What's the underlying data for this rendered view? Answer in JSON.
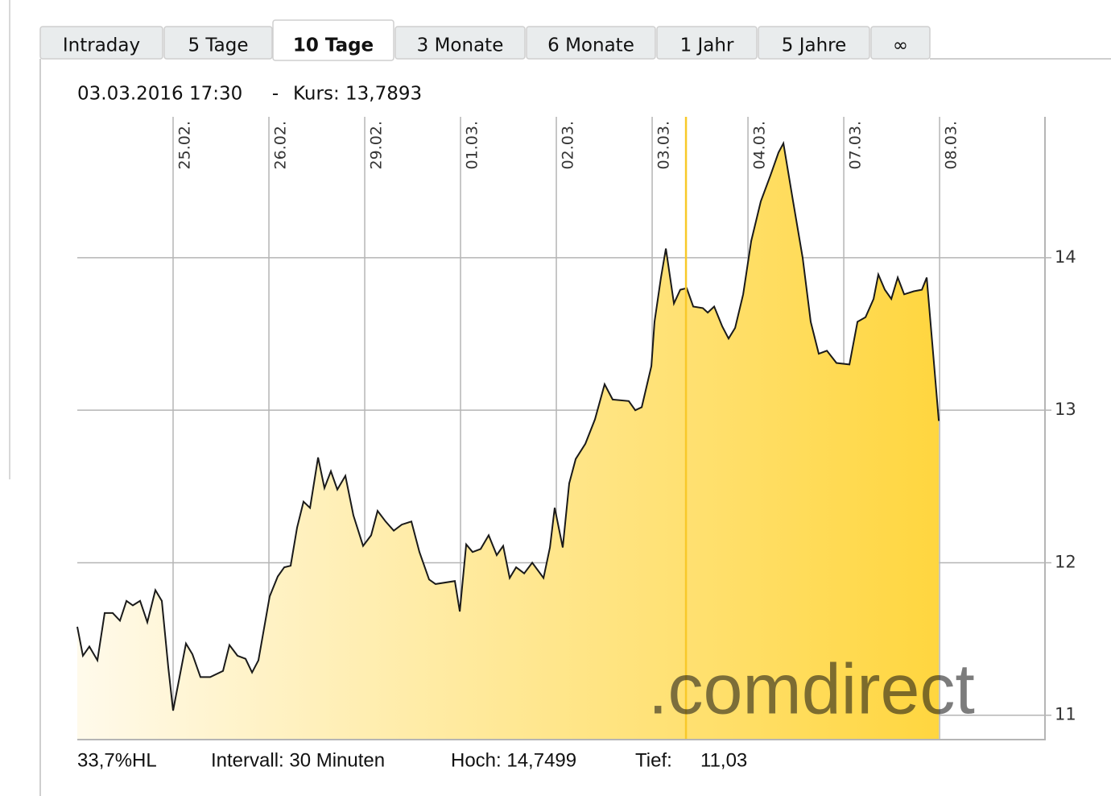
{
  "tabs": [
    "Intraday",
    "5 Tage",
    "10 Tage",
    "3 Monate",
    "6 Monate",
    "1 Jahr",
    "5 Jahre",
    "∞"
  ],
  "info": {
    "date": "03.03.2016 17:30",
    "separator": "-",
    "kurs": "Kurs: 13,7893"
  },
  "chart_data": {
    "type": "area",
    "x": [
      0,
      0.059,
      0.126,
      0.21,
      0.286,
      0.37,
      0.445,
      0.513,
      0.58,
      0.655,
      0.731,
      0.815,
      0.882,
      0.95,
      1.0,
      1.067,
      1.134,
      1.202,
      1.286,
      1.387,
      1.521,
      1.588,
      1.672,
      1.756,
      1.824,
      1.891,
      2.008,
      2.092,
      2.16,
      2.227,
      2.294,
      2.361,
      2.429,
      2.513,
      2.58,
      2.647,
      2.714,
      2.798,
      2.882,
      2.983,
      3.067,
      3.134,
      3.218,
      3.303,
      3.387,
      3.487,
      3.571,
      3.672,
      3.739,
      3.941,
      3.992,
      4.059,
      4.126,
      4.21,
      4.294,
      4.378,
      4.445,
      4.513,
      4.58,
      4.664,
      4.748,
      4.866,
      4.933,
      4.983,
      5.067,
      5.134,
      5.202,
      5.303,
      5.403,
      5.504,
      5.588,
      5.756,
      5.824,
      5.891,
      5.992,
      6.025,
      6.092,
      6.143,
      6.227,
      6.294,
      6.361,
      6.429,
      6.529,
      6.58,
      6.647,
      6.731,
      6.798,
      6.866,
      6.95,
      7.034,
      7.134,
      7.235,
      7.319,
      7.37,
      7.471,
      7.571,
      7.655,
      7.739,
      7.824,
      7.924,
      8.059,
      8.143,
      8.227,
      8.311,
      8.361,
      8.429,
      8.496,
      8.563,
      8.63,
      8.731,
      8.815,
      8.866,
      8.933,
      8.992
    ],
    "series": [
      {
        "color": "#1a1a1a",
        "fill_colors": [
          "#fffaeb",
          "#ffd63f"
        ],
        "values": [
          11.58,
          11.39,
          11.45,
          11.36,
          11.67,
          11.67,
          11.62,
          11.75,
          11.72,
          11.75,
          11.61,
          11.82,
          11.75,
          11.31,
          11.03,
          11.25,
          11.47,
          11.4,
          11.25,
          11.25,
          11.29,
          11.46,
          11.39,
          11.37,
          11.28,
          11.36,
          11.78,
          11.91,
          11.97,
          11.98,
          12.23,
          12.4,
          12.36,
          12.69,
          12.49,
          12.6,
          12.48,
          12.57,
          12.31,
          12.11,
          12.18,
          12.34,
          12.27,
          12.21,
          12.25,
          12.27,
          12.07,
          11.89,
          11.86,
          11.88,
          11.68,
          12.12,
          12.07,
          12.09,
          12.18,
          12.05,
          12.11,
          11.9,
          11.97,
          11.93,
          12.0,
          11.9,
          12.1,
          12.36,
          12.1,
          12.52,
          12.68,
          12.78,
          12.94,
          13.17,
          13.07,
          13.06,
          13.0,
          13.02,
          13.29,
          13.58,
          13.87,
          14.06,
          13.7,
          13.79,
          13.8,
          13.68,
          13.67,
          13.64,
          13.68,
          13.55,
          13.47,
          13.54,
          13.76,
          14.11,
          14.37,
          14.54,
          14.69,
          14.75,
          14.37,
          14.0,
          13.58,
          13.37,
          13.39,
          13.31,
          13.3,
          13.58,
          13.61,
          13.73,
          13.89,
          13.79,
          13.73,
          13.87,
          13.76,
          13.78,
          13.79,
          13.87,
          13.37,
          12.93
        ]
      }
    ],
    "xlim": [
      0,
      10.1
    ],
    "xticks": [
      {
        "value": 1,
        "label": "25.02."
      },
      {
        "value": 2,
        "label": "26.02."
      },
      {
        "value": 3,
        "label": "29.02."
      },
      {
        "value": 4,
        "label": "01.03."
      },
      {
        "value": 5,
        "label": "02.03."
      },
      {
        "value": 6,
        "label": "03.03."
      },
      {
        "value": 7,
        "label": "04.03."
      },
      {
        "value": 8,
        "label": "07.03."
      },
      {
        "value": 9,
        "label": "08.03."
      }
    ],
    "ylim": [
      10.84,
      14.924
    ],
    "yticks": [
      11,
      12,
      13,
      14
    ],
    "grid": true,
    "cursor": {
      "x": 6.353,
      "color": "#f8c92a"
    },
    "watermark": ".comdirect"
  },
  "footer": [
    "33,7%HL",
    "Intervall: 30 Minuten",
    "Hoch: 14,7499",
    "Tief:",
    "11,03"
  ]
}
